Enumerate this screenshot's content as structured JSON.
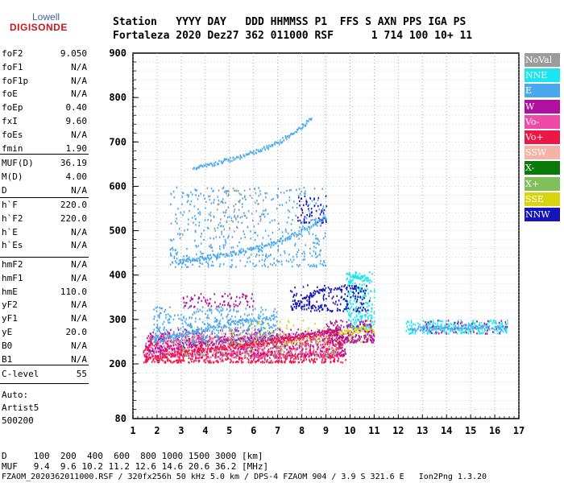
{
  "logo": {
    "top": "Lowell",
    "bottom": "DIGISONDE"
  },
  "header": {
    "line1": "Station   YYYY DAY   DDD HHMMSS P1  FFS S AXN PPS IGA PS",
    "line2": "Fortaleza 2020 Dez27 362 011000 RSF      1 714 100 10+ 11"
  },
  "params_group1": [
    {
      "label": "foF2",
      "value": "9.050"
    },
    {
      "label": "foF1",
      "value": "N/A"
    },
    {
      "label": "foF1p",
      "value": "N/A"
    },
    {
      "label": "foE",
      "value": "N/A"
    },
    {
      "label": "foEp",
      "value": "0.40"
    },
    {
      "label": "fxI",
      "value": "9.60"
    },
    {
      "label": "foEs",
      "value": "N/A"
    },
    {
      "label": "fmin",
      "value": "1.90"
    }
  ],
  "params_group2": [
    {
      "label": "MUF(D)",
      "value": "36.19"
    },
    {
      "label": "M(D)",
      "value": "4.00"
    },
    {
      "label": "D",
      "value": "N/A"
    }
  ],
  "params_group3": [
    {
      "label": "h`F",
      "value": "220.0"
    },
    {
      "label": "h`F2",
      "value": "220.0"
    },
    {
      "label": "h`E",
      "value": "N/A"
    },
    {
      "label": "h`Es",
      "value": "N/A"
    }
  ],
  "params_group4": [
    {
      "label": "hmF2",
      "value": "N/A"
    },
    {
      "label": "hmF1",
      "value": "N/A"
    },
    {
      "label": "hmE",
      "value": "110.0"
    },
    {
      "label": "yF2",
      "value": "N/A"
    },
    {
      "label": "yF1",
      "value": "N/A"
    },
    {
      "label": "yE",
      "value": "20.0"
    },
    {
      "label": "B0",
      "value": "N/A"
    },
    {
      "label": "B1",
      "value": "N/A"
    }
  ],
  "params_group5": [
    {
      "label": "C-level",
      "value": "55"
    }
  ],
  "notes": [
    "Auto:",
    "Artist5",
    "500200"
  ],
  "legend": [
    {
      "label": "NoVal",
      "color": "#9b9b9b"
    },
    {
      "label": "NNE",
      "color": "#19e6f0"
    },
    {
      "label": "E",
      "color": "#4aa8ef"
    },
    {
      "label": "W",
      "color": "#b0109d"
    },
    {
      "label": "Vo-",
      "color": "#f04aa8"
    },
    {
      "label": "Vo+",
      "color": "#ee1646"
    },
    {
      "label": "SSW",
      "color": "#f4b3a6"
    },
    {
      "label": "X-",
      "color": "#0a7b0a"
    },
    {
      "label": "X+",
      "color": "#7fc05a"
    },
    {
      "label": "SSE",
      "color": "#d9d410"
    },
    {
      "label": "NNW",
      "color": "#1414b8"
    }
  ],
  "footer": {
    "line1": "D     100  200  400  600  800 1000 1500 3000 [km]",
    "line2": "MUF   9.4  9.6 10.2 11.2 12.6 14.6 20.6 36.2 [MHz]",
    "line3": "FZAOM_2020362011000.RSF / 320fx256h 50 kHz 5.0 km / DPS-4 FZAOM 904 / 3.9 S 321.6 E   Ion2Png 1.3.20"
  },
  "chart_data": {
    "type": "scatter",
    "xlim": [
      1,
      17
    ],
    "ylim": [
      80,
      900
    ],
    "x_ticks": [
      1,
      2,
      3,
      4,
      5,
      6,
      7,
      8,
      9,
      10,
      11,
      12,
      13,
      14,
      15,
      16,
      17
    ],
    "y_ticks": [
      80,
      200,
      300,
      400,
      500,
      600,
      700,
      800,
      900
    ],
    "grid": true,
    "traces": [
      {
        "name": "Vo+",
        "points": [
          [
            1.5,
            212
          ],
          [
            2,
            218
          ],
          [
            2.5,
            222
          ],
          [
            3,
            226
          ],
          [
            3.5,
            230
          ],
          [
            4,
            234
          ],
          [
            4.5,
            237
          ],
          [
            5,
            240
          ],
          [
            5.5,
            244
          ],
          [
            6,
            248
          ],
          [
            6.5,
            251
          ],
          [
            7,
            255
          ],
          [
            7.5,
            259
          ],
          [
            8,
            263
          ],
          [
            8.5,
            268
          ],
          [
            9,
            272
          ],
          [
            9.5,
            276
          ]
        ]
      },
      {
        "name": "W",
        "points": [
          [
            1.6,
            230
          ],
          [
            2.2,
            236
          ],
          [
            3,
            242
          ],
          [
            4,
            248
          ],
          [
            5,
            254
          ],
          [
            6,
            258
          ],
          [
            7,
            262
          ],
          [
            8,
            268
          ],
          [
            9,
            274
          ],
          [
            9.6,
            280
          ]
        ]
      },
      {
        "name": "E",
        "points": [
          [
            1.8,
            255
          ],
          [
            2.5,
            262
          ],
          [
            3,
            268
          ],
          [
            3.5,
            274
          ],
          [
            4,
            280
          ],
          [
            4.5,
            286
          ],
          [
            5,
            292
          ],
          [
            5.5,
            297
          ],
          [
            6,
            302
          ],
          [
            7,
            310
          ]
        ]
      },
      {
        "name": "E",
        "points": [
          [
            2.8,
            430
          ],
          [
            3.2,
            434
          ],
          [
            3.6,
            438
          ],
          [
            4,
            441
          ],
          [
            4.5,
            446
          ],
          [
            5,
            450
          ],
          [
            5.5,
            455
          ],
          [
            6,
            462
          ],
          [
            6.5,
            470
          ],
          [
            7,
            478
          ],
          [
            7.5,
            488
          ],
          [
            8,
            502
          ],
          [
            8.5,
            516
          ],
          [
            9,
            532
          ]
        ]
      },
      {
        "name": "E",
        "points": [
          [
            3.5,
            640
          ],
          [
            4,
            648
          ],
          [
            4.5,
            655
          ],
          [
            5,
            662
          ],
          [
            5.5,
            670
          ],
          [
            6,
            678
          ],
          [
            6.5,
            688
          ],
          [
            7,
            700
          ],
          [
            7.5,
            716
          ],
          [
            8,
            736
          ],
          [
            8.4,
            756
          ]
        ]
      },
      {
        "name": "E",
        "points": [
          [
            12.5,
            280
          ],
          [
            13,
            282
          ],
          [
            13.5,
            283
          ],
          [
            14,
            284
          ],
          [
            14.5,
            285
          ],
          [
            15,
            285
          ],
          [
            15.5,
            284
          ],
          [
            16,
            283
          ],
          [
            16.4,
            282
          ]
        ]
      },
      {
        "name": "NNW",
        "points": [
          [
            7.7,
            335
          ],
          [
            8,
            345
          ],
          [
            8.5,
            360
          ],
          [
            9,
            370
          ],
          [
            10,
            375
          ],
          [
            10.6,
            365
          ]
        ]
      },
      {
        "name": "SSE",
        "points": [
          [
            9.5,
            270
          ],
          [
            10,
            275
          ],
          [
            10.5,
            280
          ],
          [
            11,
            278
          ]
        ]
      },
      {
        "name": "NNE",
        "points": [
          [
            9.9,
            385
          ],
          [
            10.2,
            400
          ],
          [
            10.5,
            395
          ],
          [
            10.8,
            390
          ]
        ]
      }
    ],
    "blobs": [
      {
        "name": "Vo+",
        "x": [
          1.4,
          9.8
        ],
        "y": [
          205,
          265
        ],
        "density": 900
      },
      {
        "name": "W",
        "x": [
          1.5,
          9.8
        ],
        "y": [
          220,
          280
        ],
        "density": 500
      },
      {
        "name": "Vo-",
        "x": [
          1.5,
          9.5
        ],
        "y": [
          215,
          270
        ],
        "density": 350
      },
      {
        "name": "SSW",
        "x": [
          2,
          9.5
        ],
        "y": [
          225,
          275
        ],
        "density": 200
      },
      {
        "name": "X+",
        "x": [
          3,
          9.5
        ],
        "y": [
          220,
          260
        ],
        "density": 80
      },
      {
        "name": "SSE",
        "x": [
          5,
          11
        ],
        "y": [
          250,
          300
        ],
        "density": 160
      },
      {
        "name": "E",
        "x": [
          1.8,
          7
        ],
        "y": [
          250,
          330
        ],
        "density": 400
      },
      {
        "name": "E",
        "x": [
          2.5,
          9
        ],
        "y": [
          420,
          600
        ],
        "density": 500
      },
      {
        "name": "NNE",
        "x": [
          9.8,
          11
        ],
        "y": [
          280,
          410
        ],
        "density": 200
      },
      {
        "name": "NNW",
        "x": [
          7.5,
          10.8
        ],
        "y": [
          320,
          380
        ],
        "density": 180
      },
      {
        "name": "W",
        "x": [
          9,
          11
        ],
        "y": [
          250,
          300
        ],
        "density": 200
      },
      {
        "name": "NNE",
        "x": [
          12.3,
          16.5
        ],
        "y": [
          270,
          300
        ],
        "density": 250
      },
      {
        "name": "W",
        "x": [
          13,
          16.5
        ],
        "y": [
          270,
          300
        ],
        "density": 60
      },
      {
        "name": "NoVal",
        "x": [
          4,
          6.5
        ],
        "y": [
          500,
          600
        ],
        "density": 60
      },
      {
        "name": "W",
        "x": [
          3,
          6
        ],
        "y": [
          330,
          360
        ],
        "density": 80
      },
      {
        "name": "NNW",
        "x": [
          7.8,
          9
        ],
        "y": [
          520,
          580
        ],
        "density": 60
      }
    ]
  }
}
